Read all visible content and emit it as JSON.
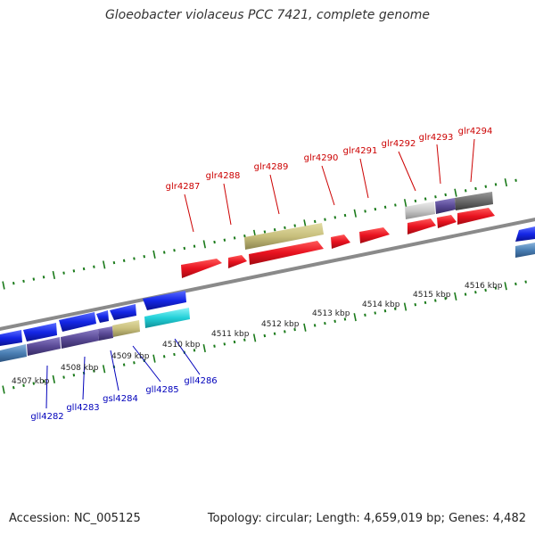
{
  "title": "Gloeobacter violaceus PCC 7421, complete genome",
  "footer": {
    "accession": "Accession: NC_005125",
    "summary": "Topology: circular; Length: 4,659,019 bp; Genes: 4,482"
  },
  "colors": {
    "forward_gene": "#e8121f",
    "reverse_gene": "#1426e6",
    "tan_gene": "#c8bf7c",
    "cyan_gene": "#22d0d8",
    "purple_gene": "#5a4a96",
    "steel_gene": "#4a7fb4",
    "light_gray_gene": "#c8c8c8",
    "dark_gray_gene": "#6a6a6a",
    "backbone": "#8a8a8a",
    "tick": "#1a7a1a",
    "forward_label": "#cc0000",
    "reverse_label": "#0000bb"
  },
  "kbp_labels": [
    "4507 kbp",
    "4508 kbp",
    "4509 kbp",
    "4510 kbp",
    "4511 kbp",
    "4512 kbp",
    "4513 kbp",
    "4514 kbp",
    "4515 kbp",
    "4516 kbp"
  ],
  "forward_labels": [
    "glr4287",
    "glr4288",
    "glr4289",
    "glr4290",
    "glr4291",
    "glr4292",
    "glr4293",
    "glr4294"
  ],
  "reverse_labels": [
    "gll4282",
    "gll4283",
    "gsl4284",
    "gll4285",
    "gll4286"
  ]
}
